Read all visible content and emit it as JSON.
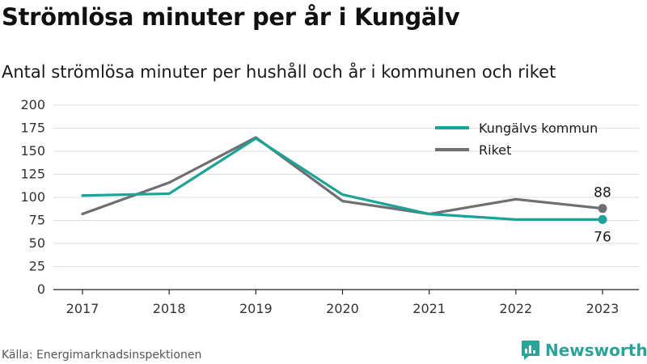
{
  "header": {
    "title": "Strömlösa minuter per år i Kungälv",
    "subtitle": "Antal strömlösa minuter per hushåll och år i kommunen och riket"
  },
  "footer": {
    "source": "Källa: Energimarknadsinspektionen",
    "brand": "Newsworthy"
  },
  "icons": {
    "brand": "bar-chart-speech-bubble-icon"
  },
  "chart_data": {
    "type": "line",
    "x": [
      "2017",
      "2018",
      "2019",
      "2020",
      "2021",
      "2022",
      "2023"
    ],
    "yticks": [
      0,
      25,
      50,
      75,
      100,
      125,
      150,
      175,
      200
    ],
    "ylim": [
      0,
      200
    ],
    "grid": true,
    "legend_position": "top-right",
    "series": [
      {
        "name": "Kungälvs kommun",
        "color": "#1aa396",
        "values": [
          102,
          104,
          164,
          103,
          82,
          76,
          76
        ],
        "end_label": "76"
      },
      {
        "name": "Riket",
        "color": "#6e6e73",
        "values": [
          82,
          116,
          165,
          96,
          82,
          98,
          88
        ],
        "end_label": "88"
      }
    ]
  }
}
